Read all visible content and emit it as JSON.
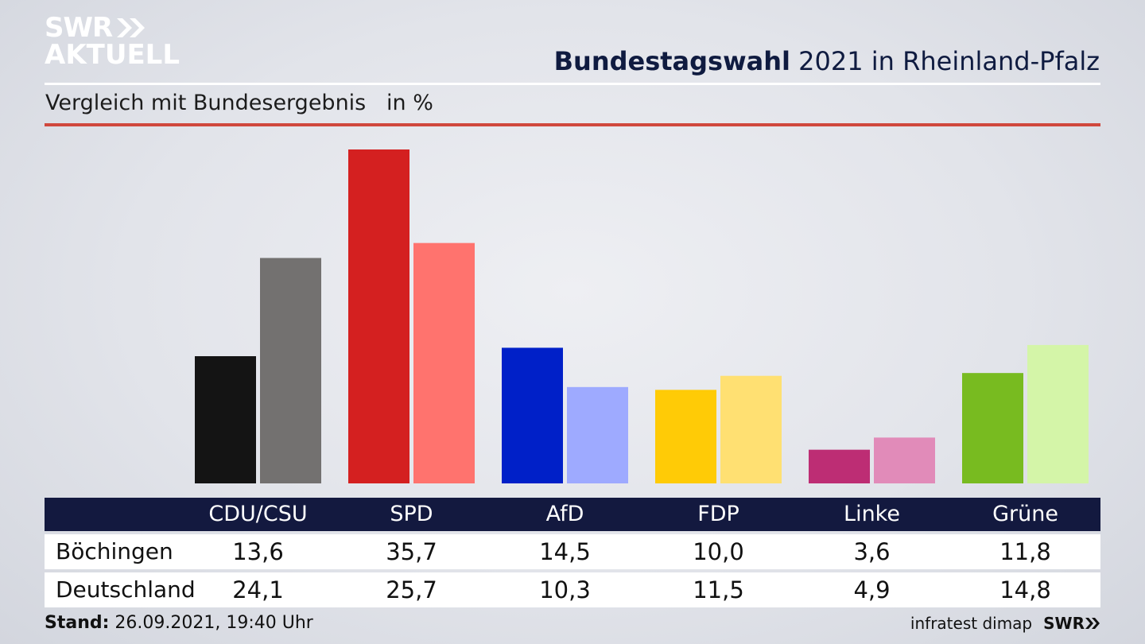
{
  "brand": {
    "logo_line1": "SWR",
    "logo_line2": "AKTUELL",
    "footer_source": "infratest dimap",
    "footer_logo": "SWR"
  },
  "header": {
    "title_bold": "Bundestagswahl",
    "title_rest": " 2021 in Rheinland-Pfalz",
    "subtitle": "Vergleich mit Bundesergebnis   in %"
  },
  "footer": {
    "stand_label": "Stand:",
    "stand_value": " 26.09.2021, 19:40 Uhr"
  },
  "chart_data": {
    "type": "bar",
    "categories": [
      "CDU/CSU",
      "SPD",
      "AfD",
      "FDP",
      "Linke",
      "Grüne"
    ],
    "series": [
      {
        "name": "Böchingen",
        "values": [
          13.6,
          35.7,
          14.5,
          10.0,
          3.6,
          11.8
        ],
        "labels": [
          "13,6",
          "35,7",
          "14,5",
          "10,0",
          "3,6",
          "11,8"
        ]
      },
      {
        "name": "Deutschland",
        "values": [
          24.1,
          25.7,
          10.3,
          11.5,
          4.9,
          14.8
        ],
        "labels": [
          "24,1",
          "25,7",
          "10,3",
          "11,5",
          "4,9",
          "14,8"
        ]
      }
    ],
    "colors": {
      "Böchingen": [
        "#141414",
        "#d42020",
        "#0020c8",
        "#ffcb06",
        "#bd2d74",
        "#78bb20"
      ],
      "Deutschland": [
        "#737170",
        "#ff736e",
        "#9eaaff",
        "#ffe072",
        "#e18bb9",
        "#d4f5a8"
      ]
    },
    "ylim": [
      0,
      35.7
    ],
    "grid": false,
    "legend": "none"
  }
}
